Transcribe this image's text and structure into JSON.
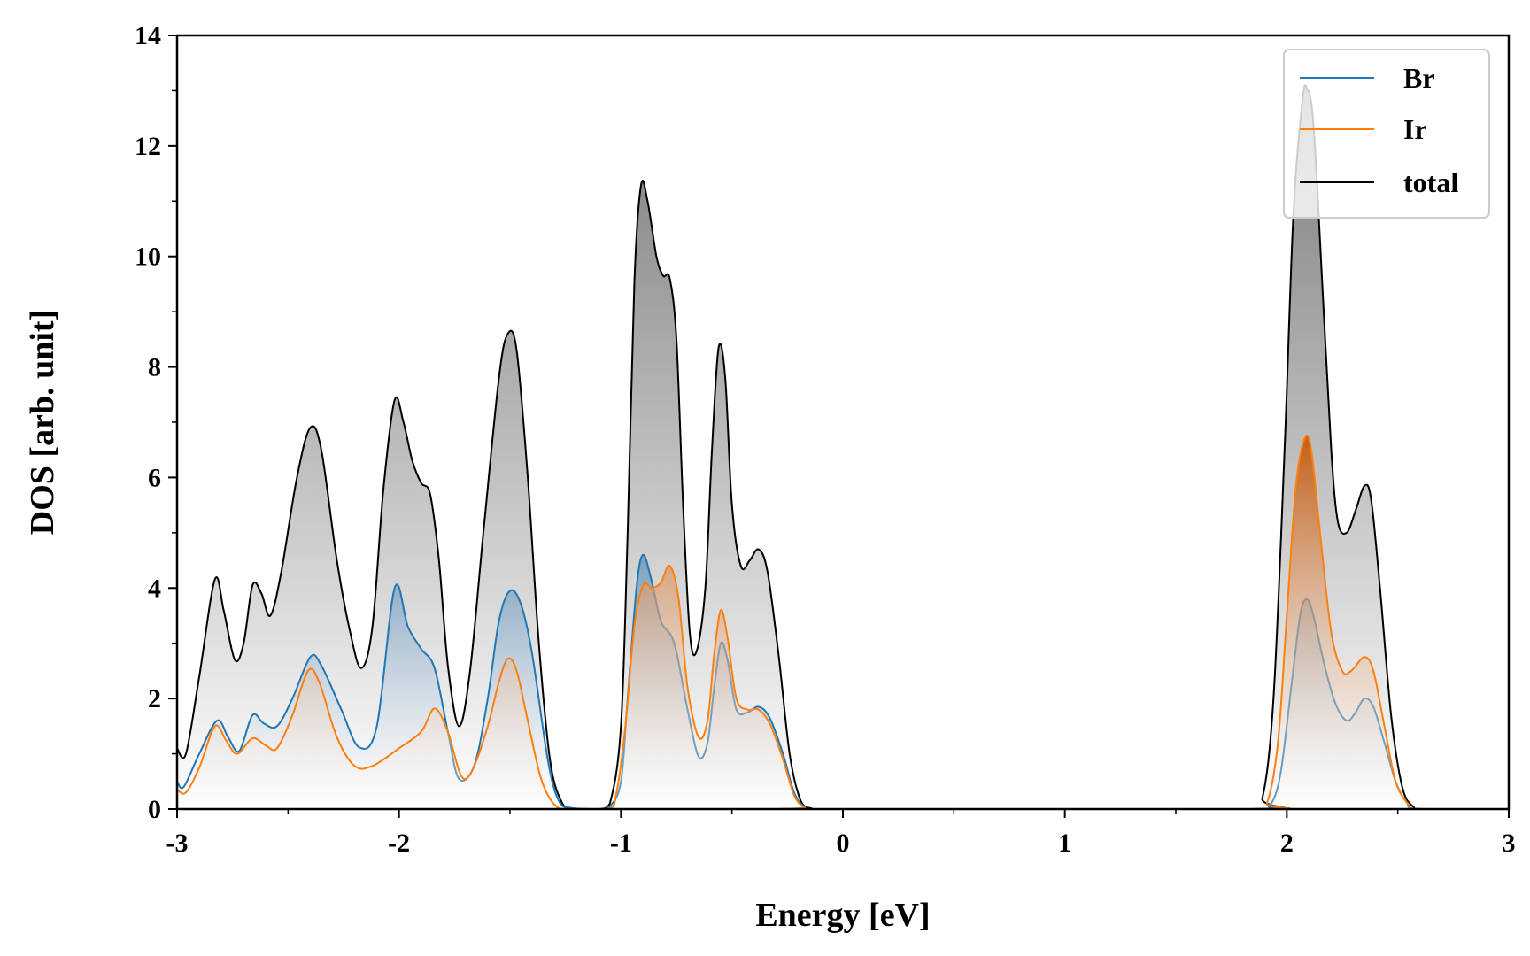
{
  "chart_data": {
    "type": "area",
    "title": "",
    "xlabel": "Energy [eV]",
    "ylabel": "DOS [arb. unit]",
    "xlim": [
      -3,
      3
    ],
    "ylim": [
      0,
      14
    ],
    "x_ticks": [
      "-3",
      "-2",
      "-1",
      "0",
      "1",
      "2",
      "3"
    ],
    "y_ticks": [
      "0",
      "2",
      "4",
      "6",
      "8",
      "10",
      "12",
      "14"
    ],
    "legend_position": "top-right",
    "series": [
      {
        "name": "Br",
        "color": "#1f77b4",
        "fill": "blue-gradient",
        "points": [
          [
            -3.0,
            0.5
          ],
          [
            -2.97,
            0.4
          ],
          [
            -2.9,
            1.0
          ],
          [
            -2.82,
            1.6
          ],
          [
            -2.77,
            1.3
          ],
          [
            -2.72,
            1.05
          ],
          [
            -2.66,
            1.7
          ],
          [
            -2.61,
            1.55
          ],
          [
            -2.55,
            1.5
          ],
          [
            -2.48,
            2.0
          ],
          [
            -2.4,
            2.75
          ],
          [
            -2.35,
            2.6
          ],
          [
            -2.26,
            1.8
          ],
          [
            -2.18,
            1.12
          ],
          [
            -2.1,
            1.5
          ],
          [
            -2.02,
            4.0
          ],
          [
            -1.96,
            3.3
          ],
          [
            -1.9,
            2.9
          ],
          [
            -1.84,
            2.55
          ],
          [
            -1.78,
            1.4
          ],
          [
            -1.73,
            0.55
          ],
          [
            -1.66,
            0.8
          ],
          [
            -1.6,
            2.0
          ],
          [
            -1.55,
            3.4
          ],
          [
            -1.5,
            3.95
          ],
          [
            -1.45,
            3.7
          ],
          [
            -1.4,
            2.8
          ],
          [
            -1.33,
            0.9
          ],
          [
            -1.28,
            0.15
          ],
          [
            -1.22,
            0.02
          ],
          [
            -1.1,
            0.0
          ],
          [
            -1.05,
            0.05
          ],
          [
            -1.0,
            0.5
          ],
          [
            -0.97,
            2.0
          ],
          [
            -0.93,
            4.0
          ],
          [
            -0.9,
            4.6
          ],
          [
            -0.86,
            4.1
          ],
          [
            -0.82,
            3.4
          ],
          [
            -0.76,
            3.0
          ],
          [
            -0.7,
            1.8
          ],
          [
            -0.65,
            0.95
          ],
          [
            -0.61,
            1.2
          ],
          [
            -0.58,
            2.2
          ],
          [
            -0.55,
            3.0
          ],
          [
            -0.52,
            2.7
          ],
          [
            -0.48,
            1.8
          ],
          [
            -0.43,
            1.75
          ],
          [
            -0.38,
            1.85
          ],
          [
            -0.33,
            1.65
          ],
          [
            -0.27,
            1.0
          ],
          [
            -0.22,
            0.3
          ],
          [
            -0.17,
            0.03
          ],
          [
            -0.12,
            0.0
          ],
          [
            1.85,
            0.0
          ],
          [
            1.92,
            0.05
          ],
          [
            1.97,
            0.6
          ],
          [
            2.02,
            2.2
          ],
          [
            2.06,
            3.5
          ],
          [
            2.09,
            3.8
          ],
          [
            2.12,
            3.5
          ],
          [
            2.17,
            2.6
          ],
          [
            2.22,
            1.9
          ],
          [
            2.27,
            1.6
          ],
          [
            2.31,
            1.75
          ],
          [
            2.35,
            2.0
          ],
          [
            2.39,
            1.85
          ],
          [
            2.44,
            1.2
          ],
          [
            2.49,
            0.5
          ],
          [
            2.54,
            0.12
          ],
          [
            2.6,
            0.0
          ],
          [
            3.0,
            0.0
          ]
        ]
      },
      {
        "name": "Ir",
        "color": "#ff7f0e",
        "fill": "orange-gradient",
        "points": [
          [
            -3.0,
            0.35
          ],
          [
            -2.96,
            0.3
          ],
          [
            -2.9,
            0.75
          ],
          [
            -2.83,
            1.5
          ],
          [
            -2.78,
            1.25
          ],
          [
            -2.73,
            1.0
          ],
          [
            -2.66,
            1.28
          ],
          [
            -2.6,
            1.15
          ],
          [
            -2.55,
            1.1
          ],
          [
            -2.48,
            1.7
          ],
          [
            -2.41,
            2.5
          ],
          [
            -2.36,
            2.3
          ],
          [
            -2.28,
            1.3
          ],
          [
            -2.2,
            0.78
          ],
          [
            -2.12,
            0.78
          ],
          [
            -2.0,
            1.1
          ],
          [
            -1.9,
            1.4
          ],
          [
            -1.84,
            1.82
          ],
          [
            -1.78,
            1.4
          ],
          [
            -1.72,
            0.6
          ],
          [
            -1.67,
            0.7
          ],
          [
            -1.6,
            1.5
          ],
          [
            -1.55,
            2.3
          ],
          [
            -1.51,
            2.72
          ],
          [
            -1.47,
            2.5
          ],
          [
            -1.42,
            1.6
          ],
          [
            -1.36,
            0.55
          ],
          [
            -1.3,
            0.08
          ],
          [
            -1.24,
            0.0
          ],
          [
            -1.06,
            0.0
          ],
          [
            -1.02,
            0.3
          ],
          [
            -0.98,
            1.5
          ],
          [
            -0.94,
            3.3
          ],
          [
            -0.9,
            4.05
          ],
          [
            -0.86,
            4.0
          ],
          [
            -0.82,
            4.1
          ],
          [
            -0.78,
            4.4
          ],
          [
            -0.74,
            3.8
          ],
          [
            -0.7,
            2.2
          ],
          [
            -0.65,
            1.3
          ],
          [
            -0.61,
            1.6
          ],
          [
            -0.58,
            2.8
          ],
          [
            -0.55,
            3.6
          ],
          [
            -0.52,
            3.1
          ],
          [
            -0.48,
            2.0
          ],
          [
            -0.43,
            1.8
          ],
          [
            -0.38,
            1.8
          ],
          [
            -0.33,
            1.55
          ],
          [
            -0.27,
            0.9
          ],
          [
            -0.22,
            0.25
          ],
          [
            -0.17,
            0.02
          ],
          [
            -0.12,
            0.0
          ],
          [
            1.85,
            0.0
          ],
          [
            1.91,
            0.1
          ],
          [
            1.96,
            1.2
          ],
          [
            2.0,
            3.5
          ],
          [
            2.04,
            5.8
          ],
          [
            2.08,
            6.7
          ],
          [
            2.11,
            6.5
          ],
          [
            2.15,
            5.0
          ],
          [
            2.2,
            3.2
          ],
          [
            2.25,
            2.5
          ],
          [
            2.29,
            2.5
          ],
          [
            2.35,
            2.75
          ],
          [
            2.39,
            2.5
          ],
          [
            2.44,
            1.5
          ],
          [
            2.49,
            0.5
          ],
          [
            2.55,
            0.08
          ],
          [
            2.6,
            0.0
          ],
          [
            3.0,
            0.0
          ]
        ]
      },
      {
        "name": "total",
        "color": "#000000",
        "fill": "gray-gradient",
        "points": [
          [
            -3.0,
            1.1
          ],
          [
            -2.96,
            1.0
          ],
          [
            -2.9,
            2.4
          ],
          [
            -2.83,
            4.15
          ],
          [
            -2.79,
            3.6
          ],
          [
            -2.74,
            2.7
          ],
          [
            -2.7,
            3.0
          ],
          [
            -2.66,
            4.05
          ],
          [
            -2.62,
            3.9
          ],
          [
            -2.58,
            3.5
          ],
          [
            -2.53,
            4.3
          ],
          [
            -2.46,
            6.0
          ],
          [
            -2.4,
            6.9
          ],
          [
            -2.35,
            6.5
          ],
          [
            -2.28,
            4.5
          ],
          [
            -2.22,
            3.2
          ],
          [
            -2.17,
            2.55
          ],
          [
            -2.12,
            3.3
          ],
          [
            -2.07,
            5.8
          ],
          [
            -2.02,
            7.4
          ],
          [
            -1.98,
            7.0
          ],
          [
            -1.94,
            6.3
          ],
          [
            -1.9,
            5.9
          ],
          [
            -1.86,
            5.7
          ],
          [
            -1.82,
            4.5
          ],
          [
            -1.78,
            2.6
          ],
          [
            -1.73,
            1.5
          ],
          [
            -1.68,
            2.5
          ],
          [
            -1.62,
            5.0
          ],
          [
            -1.55,
            7.8
          ],
          [
            -1.51,
            8.6
          ],
          [
            -1.47,
            8.3
          ],
          [
            -1.42,
            6.0
          ],
          [
            -1.37,
            3.0
          ],
          [
            -1.32,
            0.9
          ],
          [
            -1.27,
            0.15
          ],
          [
            -1.22,
            0.01
          ],
          [
            -1.1,
            0.0
          ],
          [
            -1.05,
            0.1
          ],
          [
            -1.0,
            1.5
          ],
          [
            -0.97,
            5.0
          ],
          [
            -0.94,
            9.5
          ],
          [
            -0.91,
            11.28
          ],
          [
            -0.88,
            11.0
          ],
          [
            -0.84,
            10.0
          ],
          [
            -0.81,
            9.65
          ],
          [
            -0.78,
            9.6
          ],
          [
            -0.75,
            8.5
          ],
          [
            -0.72,
            5.5
          ],
          [
            -0.69,
            3.2
          ],
          [
            -0.66,
            2.85
          ],
          [
            -0.62,
            4.0
          ],
          [
            -0.59,
            6.5
          ],
          [
            -0.56,
            8.35
          ],
          [
            -0.53,
            7.8
          ],
          [
            -0.5,
            5.5
          ],
          [
            -0.46,
            4.4
          ],
          [
            -0.42,
            4.5
          ],
          [
            -0.38,
            4.7
          ],
          [
            -0.34,
            4.3
          ],
          [
            -0.29,
            2.8
          ],
          [
            -0.24,
            1.0
          ],
          [
            -0.19,
            0.15
          ],
          [
            -0.14,
            0.01
          ],
          [
            -0.1,
            0.0
          ],
          [
            1.83,
            0.0
          ],
          [
            1.89,
            0.2
          ],
          [
            1.94,
            2.0
          ],
          [
            1.99,
            6.5
          ],
          [
            2.03,
            10.8
          ],
          [
            2.07,
            12.8
          ],
          [
            2.09,
            13.05
          ],
          [
            2.12,
            12.4
          ],
          [
            2.16,
            9.5
          ],
          [
            2.2,
            6.5
          ],
          [
            2.23,
            5.2
          ],
          [
            2.27,
            5.0
          ],
          [
            2.31,
            5.4
          ],
          [
            2.35,
            5.85
          ],
          [
            2.38,
            5.6
          ],
          [
            2.42,
            4.0
          ],
          [
            2.47,
            1.7
          ],
          [
            2.52,
            0.4
          ],
          [
            2.57,
            0.04
          ],
          [
            2.62,
            0.0
          ],
          [
            3.0,
            0.0
          ]
        ]
      }
    ]
  }
}
